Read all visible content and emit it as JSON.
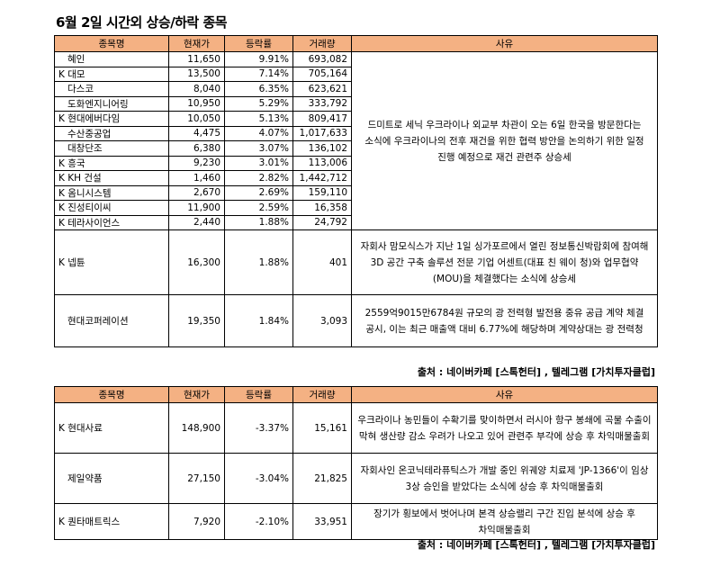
{
  "title": "6월 2일  시간외 상승/하락 종목",
  "headers": {
    "name": "종목명",
    "price": "현재가",
    "change": "등락률",
    "volume": "거래량",
    "reason": "사유"
  },
  "rise_rows": [
    {
      "name": "혜인",
      "price": "11,650",
      "change": "9.91%",
      "volume": "693,082"
    },
    {
      "name": "K 대모",
      "price": "13,500",
      "change": "7.14%",
      "volume": "705,164"
    },
    {
      "name": "다스코",
      "price": "8,040",
      "change": "6.35%",
      "volume": "623,621"
    },
    {
      "name": "도화엔지니어링",
      "price": "10,950",
      "change": "5.29%",
      "volume": "333,792"
    },
    {
      "name": "K 현대에버다임",
      "price": "10,050",
      "change": "5.13%",
      "volume": "809,417"
    },
    {
      "name": "수산중공업",
      "price": "4,475",
      "change": "4.07%",
      "volume": "1,017,633"
    },
    {
      "name": "대창단조",
      "price": "6,380",
      "change": "3.07%",
      "volume": "136,102"
    },
    {
      "name": "K 흥국",
      "price": "9,230",
      "change": "3.01%",
      "volume": "113,006"
    },
    {
      "name": "K KH 건설",
      "price": "1,460",
      "change": "2.82%",
      "volume": "1,442,712"
    },
    {
      "name": "K 옴니시스템",
      "price": "2,670",
      "change": "2.69%",
      "volume": "159,110"
    },
    {
      "name": "K 진성티이씨",
      "price": "11,900",
      "change": "2.59%",
      "volume": "16,358"
    },
    {
      "name": "K 테라사이언스",
      "price": "2,440",
      "change": "1.88%",
      "volume": "24,792"
    },
    {
      "name": "K 넵튠",
      "price": "16,300",
      "change": "1.88%",
      "volume": "401"
    },
    {
      "name": "현대코퍼레이션",
      "price": "19,350",
      "change": "1.84%",
      "volume": "3,093"
    }
  ],
  "rise_reasons": {
    "group": "드미트로 세닉 우크라이나 외교부 차관이 오는 6일 한국을 방문한다는 소식에 우크라이나의 전후 재건을 위한 협력 방안을 논의하기 위한 일정 진행 예정으로 재건 관련주 상승세",
    "neptune": "자회사 맘모식스가 지난 1일 싱가포르에서 열린 정보통신박람회에 참여해 3D 공간 구축 솔루션 전문 기업 어센트(대표 친 웨이 청)와 업무협약(MOU)을 체결했다는 소식에 상승세",
    "hyundai_corp": "2559억9015만6784원 규모의 광 전력형 발전용 중유 공급 계약 체결 공시, 이는 최근 매출액 대비 6.77%에 해당하며 계약상대는 광 전력청"
  },
  "source": "출처 : 네이버카페 [스톡헌터] , 텔레그램 [가치투자클럽]",
  "fall_rows": [
    {
      "name": "K 현대사료",
      "price": "148,900",
      "change": "-3.37%",
      "volume": "15,161",
      "reason": "우크라이나 농민들이 수확기를 맞이하면서 러시아 항구 봉쇄에 곡물 수출이 막혀 생산량 감소 우려가 나오고 있어 관련주 부각에 상승 후 차익매물출회"
    },
    {
      "name": "제일약품",
      "price": "27,150",
      "change": "-3.04%",
      "volume": "21,825",
      "reason": "자회사인 온코닉테라퓨틱스가 개발 중인 위궤양 치료제 'JP-1366'이 임상 3상 승인을 받았다는 소식에 상승 후 차익매물출회"
    },
    {
      "name": "K 퀀타매트릭스",
      "price": "7,920",
      "change": "-2.10%",
      "volume": "33,951",
      "reason": "장기가 횡보에서 벗어나며 본격 상승랠리 구간 진입 분석에 상승 후 차익매물출회"
    }
  ],
  "colors": {
    "header_bg": "#f4b183"
  }
}
